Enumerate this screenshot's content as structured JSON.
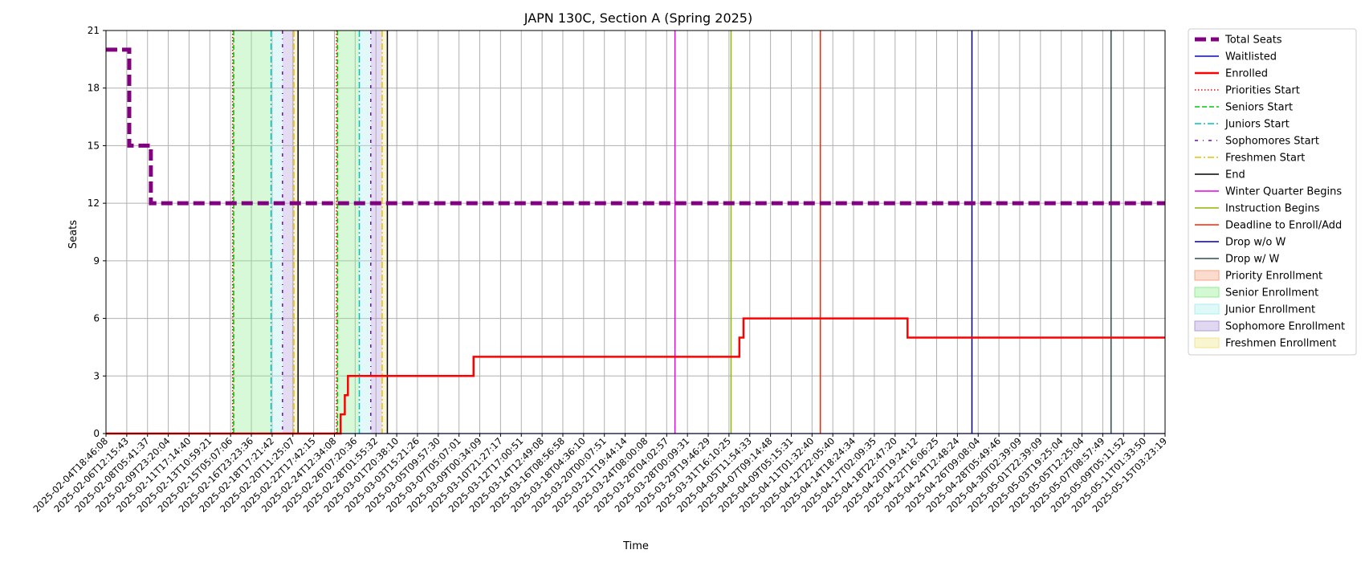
{
  "chart_data": {
    "type": "line",
    "title": "JAPN 130C, Section A (Spring 2025)",
    "xlabel": "Time",
    "ylabel": "Seats",
    "ylim": [
      0,
      21
    ],
    "y_ticks": [
      0,
      3,
      6,
      9,
      12,
      15,
      18,
      21
    ],
    "grid": true,
    "legend_position": "outside right",
    "x_ticks": [
      "2025-02-04T18:46:08",
      "2025-02-06T12:15:43",
      "2025-02-08T05:41:37",
      "2025-02-09T23:20:04",
      "2025-02-11T17:14:40",
      "2025-02-13T10:59:21",
      "2025-02-15T05:07:06",
      "2025-02-16T23:23:36",
      "2025-02-18T17:21:42",
      "2025-02-20T11:25:07",
      "2025-02-22T17:42:15",
      "2025-02-24T12:34:08",
      "2025-02-26T07:20:36",
      "2025-02-28T01:55:32",
      "2025-03-01T20:38:10",
      "2025-03-03T15:21:26",
      "2025-03-05T09:57:30",
      "2025-03-07T05:07:01",
      "2025-03-09T00:34:09",
      "2025-03-10T21:27:17",
      "2025-03-12T17:00:51",
      "2025-03-14T12:49:08",
      "2025-03-16T08:56:58",
      "2025-03-18T04:36:10",
      "2025-03-20T00:07:51",
      "2025-03-21T19:44:14",
      "2025-03-24T08:00:08",
      "2025-03-26T04:02:57",
      "2025-03-28T00:09:31",
      "2025-03-29T19:46:29",
      "2025-03-31T16:10:25",
      "2025-04-05T11:54:33",
      "2025-04-07T09:14:48",
      "2025-04-09T05:15:31",
      "2025-04-11T01:32:40",
      "2025-04-12T22:05:40",
      "2025-04-14T18:24:34",
      "2025-04-17T02:09:35",
      "2025-04-18T22:47:20",
      "2025-04-20T19:24:12",
      "2025-04-22T16:06:25",
      "2025-04-24T12:48:24",
      "2025-04-26T09:08:04",
      "2025-04-28T05:49:46",
      "2025-04-30T02:39:09",
      "2025-05-01T22:39:09",
      "2025-05-03T19:25:04",
      "2025-05-05T12:25:04",
      "2025-05-07T08:57:49",
      "2025-05-09T05:11:52",
      "2025-05-11T01:33:50",
      "2025-05-15T03:23:19"
    ],
    "series": [
      {
        "name": "Total Seats",
        "color": "#800080",
        "style": "dashed-thick",
        "points": [
          [
            0,
            20
          ],
          [
            1.12,
            20
          ],
          [
            1.12,
            15
          ],
          [
            2.16,
            15
          ],
          [
            2.16,
            12
          ],
          [
            51,
            12
          ]
        ]
      },
      {
        "name": "Waitlisted",
        "color": "#0000ff",
        "style": "solid",
        "points": [
          [
            0,
            0
          ],
          [
            51,
            0
          ]
        ]
      },
      {
        "name": "Enrolled",
        "color": "#ff0000",
        "style": "solid-thick",
        "points": [
          [
            0,
            0
          ],
          [
            11.3,
            0
          ],
          [
            11.3,
            1
          ],
          [
            11.5,
            1
          ],
          [
            11.5,
            2
          ],
          [
            11.65,
            2
          ],
          [
            11.65,
            3
          ],
          [
            17.7,
            3
          ],
          [
            17.7,
            4
          ],
          [
            30.5,
            4
          ],
          [
            30.5,
            5
          ],
          [
            30.7,
            5
          ],
          [
            30.7,
            6
          ],
          [
            38.6,
            6
          ],
          [
            38.6,
            5
          ],
          [
            51,
            5
          ]
        ]
      }
    ],
    "enrollment_windows": [
      {
        "name": "Priority Enrollment",
        "color": "#f4a582",
        "from": 6.1,
        "to": 6.15
      },
      {
        "name": "Senior Enrollment",
        "color": "#90ee90",
        "from": 6.15,
        "to": 7.95
      },
      {
        "name": "Junior Enrollment",
        "color": "#afeeee",
        "from": 7.95,
        "to": 8.5
      },
      {
        "name": "Sophomore Enrollment",
        "color": "#b19cd9",
        "from": 8.5,
        "to": 9.05
      },
      {
        "name": "Freshmen Enrollment",
        "color": "#f0e68c",
        "from": 9.05,
        "to": 9.25
      },
      {
        "name": "Priority Enrollment",
        "color": "#f4a582",
        "from": 11.1,
        "to": 11.15
      },
      {
        "name": "Senior Enrollment",
        "color": "#90ee90",
        "from": 11.15,
        "to": 12.2
      },
      {
        "name": "Junior Enrollment",
        "color": "#afeeee",
        "from": 12.2,
        "to": 12.75
      },
      {
        "name": "Sophomore Enrollment",
        "color": "#b19cd9",
        "from": 12.75,
        "to": 13.3
      },
      {
        "name": "Freshmen Enrollment",
        "color": "#f0e68c",
        "from": 13.3,
        "to": 13.55
      }
    ],
    "events": [
      {
        "name": "Priorities Start",
        "color": "#ff0000",
        "style": "dotted",
        "x": [
          6.1,
          11.1
        ]
      },
      {
        "name": "Seniors Start",
        "color": "#00cc00",
        "style": "dashed",
        "x": [
          6.15,
          11.15
        ]
      },
      {
        "name": "Juniors Start",
        "color": "#00c0c0",
        "style": "dashdot",
        "x": [
          7.95,
          12.2
        ]
      },
      {
        "name": "Sophomores Start",
        "color": "#6a0dad",
        "style": "dashdot-dense",
        "x": [
          8.5,
          12.75
        ]
      },
      {
        "name": "Freshmen Start",
        "color": "#e6c300",
        "style": "dashdot",
        "x": [
          9.05,
          13.3
        ]
      },
      {
        "name": "End",
        "color": "#000000",
        "style": "solid",
        "x": [
          9.25,
          13.55
        ]
      },
      {
        "name": "Winter Quarter Begins",
        "color": "#e600e6",
        "style": "solid",
        "x": [
          27.4
        ]
      },
      {
        "name": "Instruction Begins",
        "color": "#8db600",
        "style": "solid",
        "x": [
          30.1
        ]
      },
      {
        "name": "Deadline to Enroll/Add",
        "color": "#ff2200",
        "style": "solid",
        "x": [
          34.4
        ]
      },
      {
        "name": "Drop w/o W",
        "color": "#00008b",
        "style": "solid",
        "x": [
          41.7
        ]
      },
      {
        "name": "Drop w/ W",
        "color": "#2f4f4f",
        "style": "solid",
        "x": [
          48.4
        ]
      }
    ],
    "legend": [
      {
        "label": "Total Seats",
        "kind": "line",
        "color": "#800080",
        "style": "dashed-thick"
      },
      {
        "label": "Waitlisted",
        "kind": "line",
        "color": "#0000ff",
        "style": "solid"
      },
      {
        "label": "Enrolled",
        "kind": "line",
        "color": "#ff0000",
        "style": "solid-thick"
      },
      {
        "label": "Priorities Start",
        "kind": "line",
        "color": "#ff0000",
        "style": "dotted"
      },
      {
        "label": "Seniors Start",
        "kind": "line",
        "color": "#00cc00",
        "style": "dashed"
      },
      {
        "label": "Juniors Start",
        "kind": "line",
        "color": "#00c0c0",
        "style": "dashdot"
      },
      {
        "label": "Sophomores Start",
        "kind": "line",
        "color": "#6a0dad",
        "style": "dashdot-dense"
      },
      {
        "label": "Freshmen Start",
        "kind": "line",
        "color": "#e6c300",
        "style": "dashdot"
      },
      {
        "label": "End",
        "kind": "line",
        "color": "#000000",
        "style": "solid"
      },
      {
        "label": "Winter Quarter Begins",
        "kind": "line",
        "color": "#e600e6",
        "style": "solid"
      },
      {
        "label": "Instruction Begins",
        "kind": "line",
        "color": "#8db600",
        "style": "solid"
      },
      {
        "label": "Deadline to Enroll/Add",
        "kind": "line",
        "color": "#ff2200",
        "style": "solid"
      },
      {
        "label": "Drop w/o W",
        "kind": "line",
        "color": "#00008b",
        "style": "solid"
      },
      {
        "label": "Drop w/ W",
        "kind": "line",
        "color": "#2f4f4f",
        "style": "solid"
      },
      {
        "label": "Priority Enrollment",
        "kind": "patch",
        "color": "#f4a582"
      },
      {
        "label": "Senior Enrollment",
        "kind": "patch",
        "color": "#90ee90"
      },
      {
        "label": "Junior Enrollment",
        "kind": "patch",
        "color": "#afeeee"
      },
      {
        "label": "Sophomore Enrollment",
        "kind": "patch",
        "color": "#b19cd9"
      },
      {
        "label": "Freshmen Enrollment",
        "kind": "patch",
        "color": "#f0e68c"
      }
    ]
  }
}
